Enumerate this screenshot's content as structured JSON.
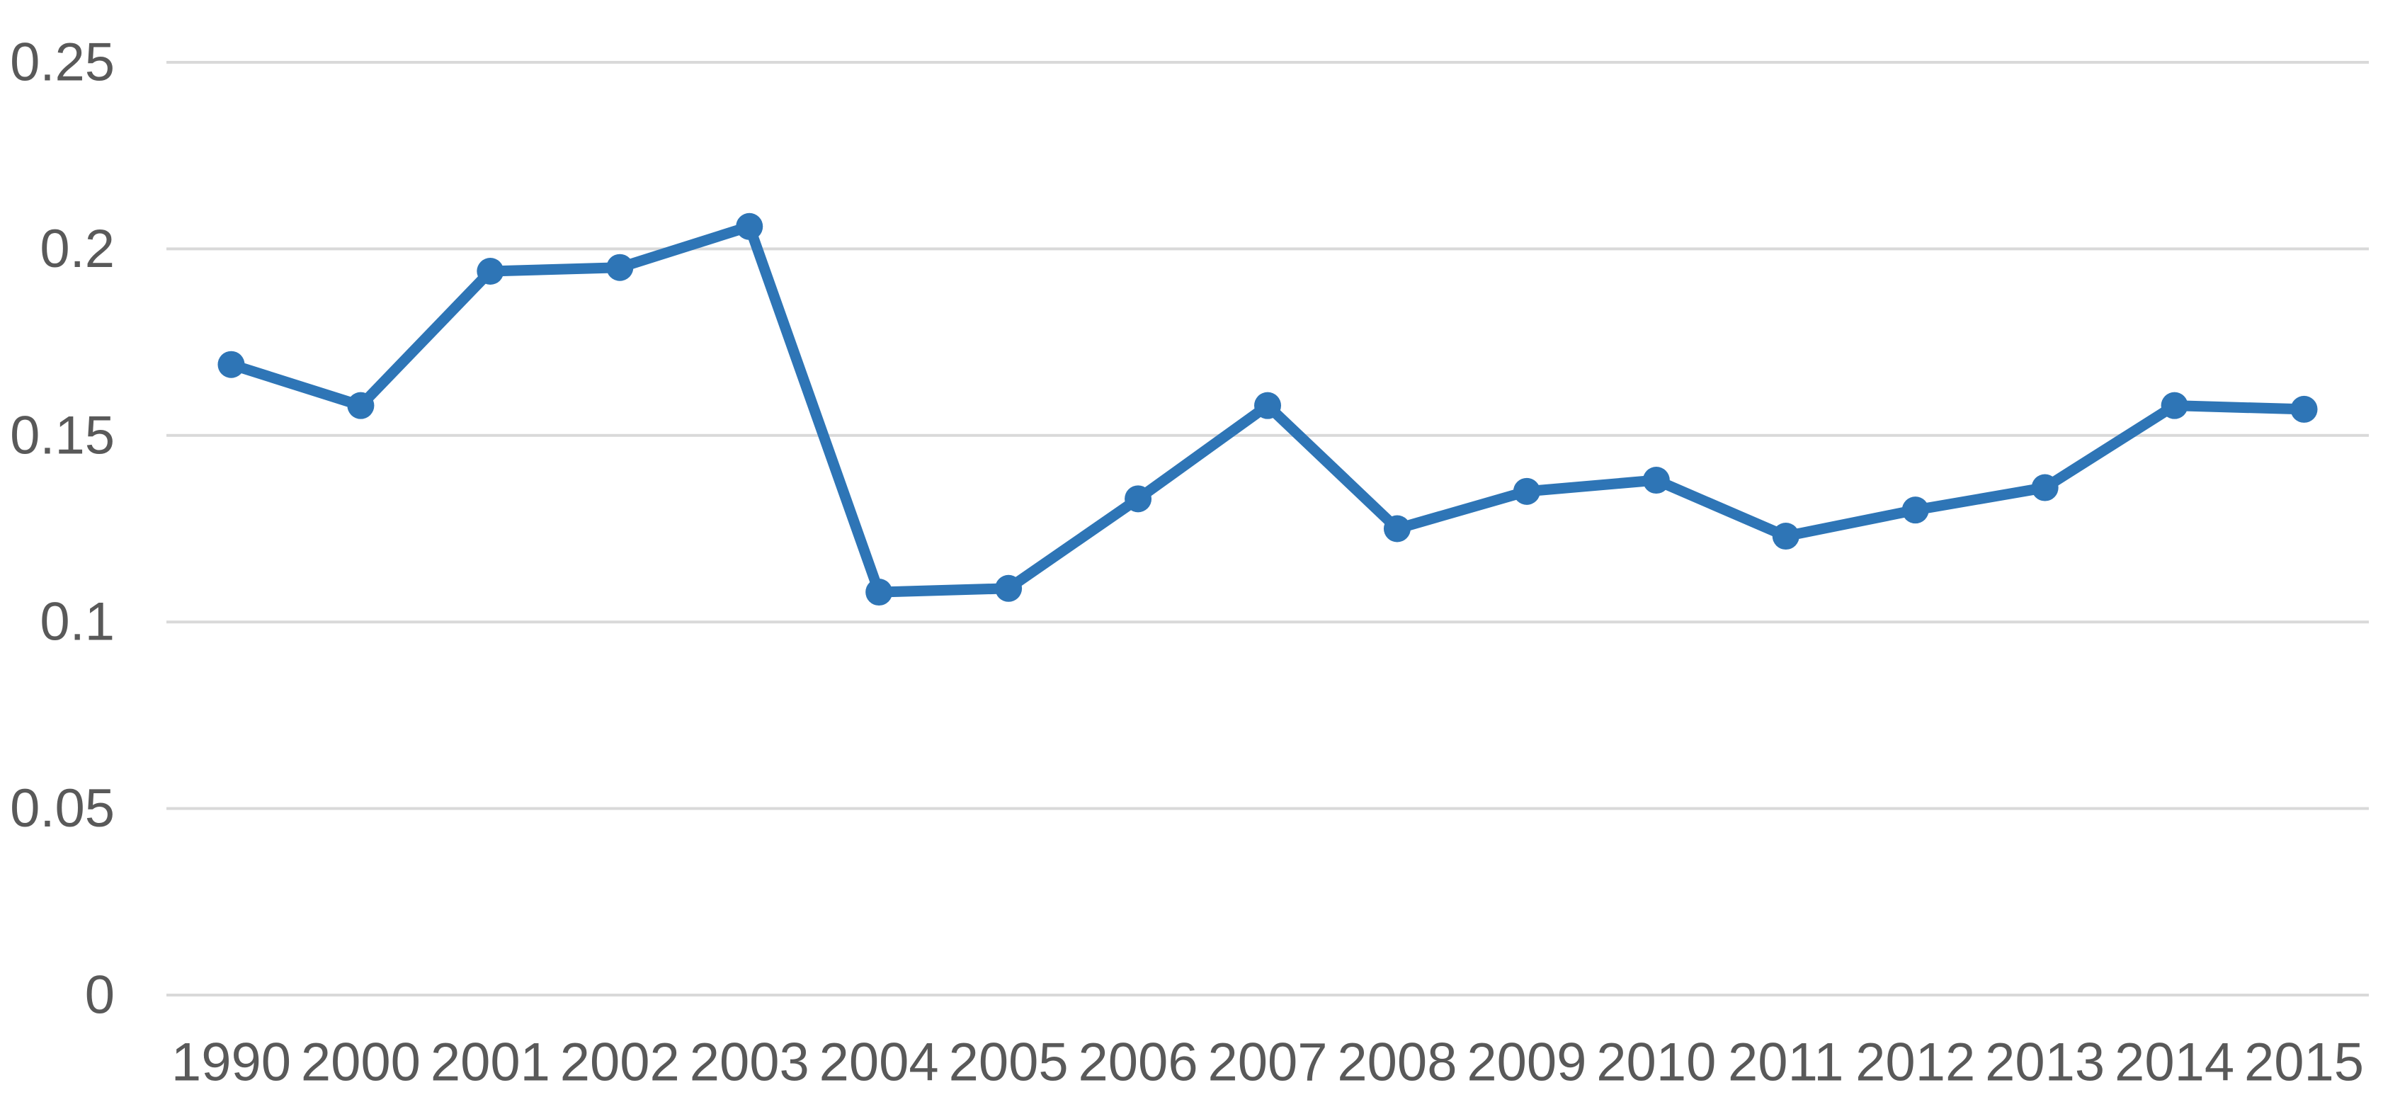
{
  "chart_data": {
    "type": "line",
    "title": "",
    "xlabel": "",
    "ylabel": "",
    "categories": [
      "1990",
      "2000",
      "2001",
      "2002",
      "2003",
      "2004",
      "2005",
      "2006",
      "2007",
      "2008",
      "2009",
      "2010",
      "2011",
      "2012",
      "2013",
      "2014",
      "2015"
    ],
    "values": [
      0.169,
      0.158,
      0.194,
      0.195,
      0.206,
      0.108,
      0.109,
      0.133,
      0.158,
      0.125,
      0.135,
      0.138,
      0.123,
      0.13,
      0.136,
      0.158,
      0.157
    ],
    "ylim": [
      0,
      0.25
    ],
    "y_ticks": [
      "0",
      "0.05",
      "0.1",
      "0.15",
      "0.2",
      "0.25"
    ],
    "y_tick_values": [
      0,
      0.05,
      0.1,
      0.15,
      0.2,
      0.25
    ],
    "grid": "horizontal-only",
    "legend": "none",
    "marker": "circle"
  },
  "style": {
    "line_color": "#2E75B6",
    "marker_color": "#2E75B6",
    "gridline_color": "#D9D9D9",
    "tick_label_color": "#595959",
    "background_color": "#FFFFFF"
  }
}
